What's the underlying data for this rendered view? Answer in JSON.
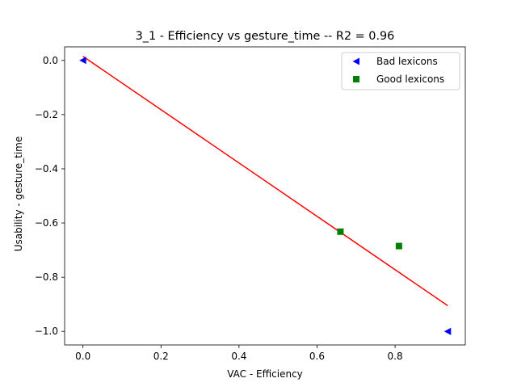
{
  "chart_data": {
    "type": "scatter",
    "title": "3_1 - Efficiency  vs  gesture_time -- R2 = 0.96",
    "xlabel": "VAC - Efficiency",
    "ylabel": "Usability - gesture_time",
    "xlim": [
      -0.047,
      0.98
    ],
    "ylim": [
      -1.05,
      0.05
    ],
    "xticks": [
      0.0,
      0.2,
      0.4,
      0.6,
      0.8
    ],
    "xtick_labels": [
      "0.0",
      "0.2",
      "0.4",
      "0.6",
      "0.8"
    ],
    "yticks": [
      0.0,
      -0.2,
      -0.4,
      -0.6,
      -0.8,
      -1.0
    ],
    "ytick_labels": [
      "0.0",
      "−0.2",
      "−0.4",
      "−0.6",
      "−0.8",
      "−1.0"
    ],
    "grid": false,
    "legend_position": "top-right",
    "series": [
      {
        "name": "Bad lexicons",
        "marker": "triangle-left",
        "color": "#0000ff",
        "points": [
          {
            "x": 0.0,
            "y": 0.0
          },
          {
            "x": 0.935,
            "y": -1.0
          }
        ]
      },
      {
        "name": "Good lexicons",
        "marker": "square",
        "color": "#008000",
        "points": [
          {
            "x": 0.66,
            "y": -0.632
          },
          {
            "x": 0.81,
            "y": -0.685
          }
        ]
      }
    ],
    "fit_line": {
      "color": "#ff0000",
      "points": [
        {
          "x": 0.0,
          "y": 0.015
        },
        {
          "x": 0.935,
          "y": -0.905
        }
      ]
    }
  }
}
